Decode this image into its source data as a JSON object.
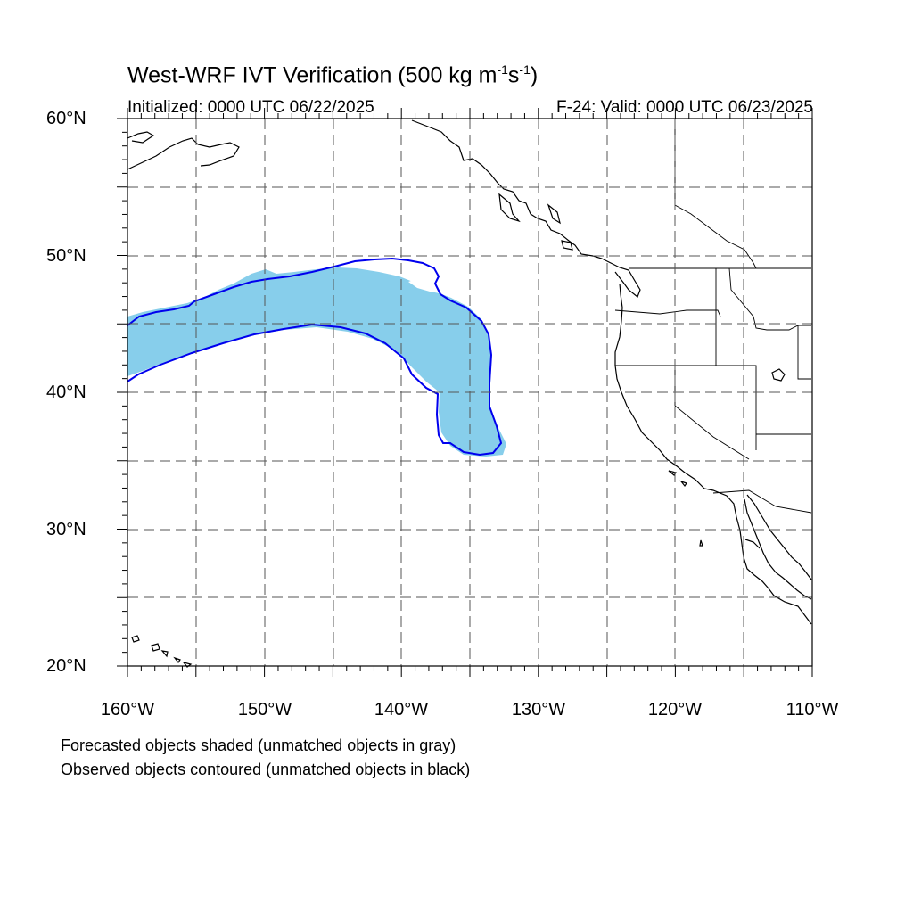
{
  "title": {
    "main": "West-WRF IVT Verification (500 kg m",
    "exp1": "-1",
    "mid": "s",
    "exp2": "-1",
    "end": ")"
  },
  "subtitle_left": "Initialized: 0000 UTC 06/22/2025",
  "subtitle_right": "F-24: Valid: 0000 UTC 06/23/2025",
  "lat_labels": [
    "60°N",
    "50°N",
    "40°N",
    "30°N",
    "20°N"
  ],
  "lon_labels": [
    "160°W",
    "150°W",
    "140°W",
    "130°W",
    "120°W",
    "110°W"
  ],
  "notes": [
    "Forecasted objects shaded (unmatched objects in gray)",
    "Observed objects contoured (unmatched objects in black)"
  ],
  "colors": {
    "forecast_fill": "#87ceeb",
    "observed_contour": "#0000ee",
    "coastline": "#000000",
    "grid": "#555555"
  },
  "map_extent": {
    "lon": [
      -160,
      -110
    ],
    "lat": [
      20,
      60
    ]
  }
}
